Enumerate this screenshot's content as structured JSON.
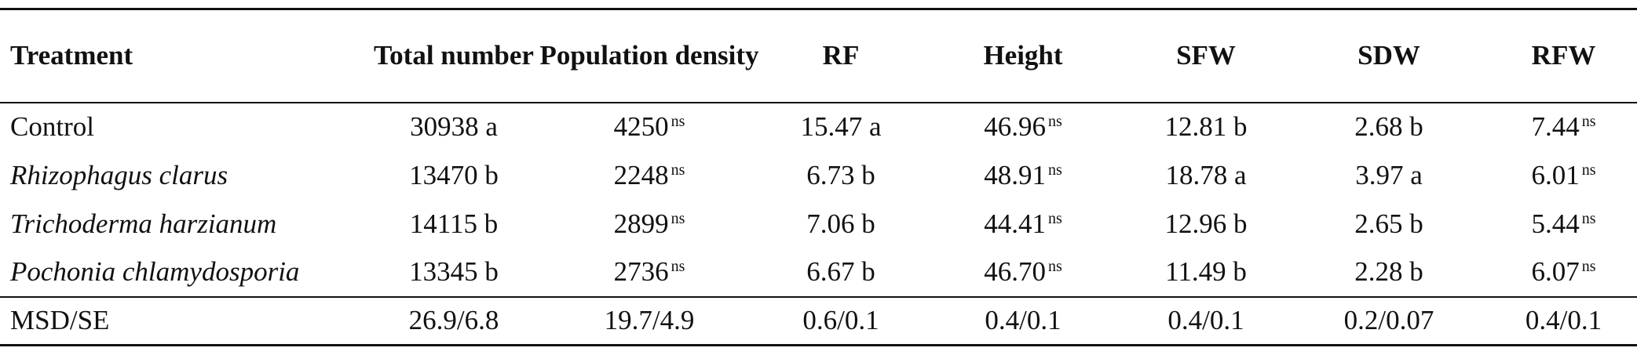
{
  "table": {
    "header": [
      "Treatment",
      "Total number",
      "Population density",
      "RF",
      "Height",
      "SFW",
      "SDW",
      "RFW"
    ],
    "rows": [
      [
        "Control",
        "30938 a",
        {
          "text": "4250",
          "sup": "ns"
        },
        "15.47 a",
        {
          "text": "46.96",
          "sup": "ns"
        },
        "12.81 b",
        "2.68 b",
        {
          "text": "7.44",
          "sup": "ns"
        }
      ],
      [
        "Rhizophagus clarus",
        "13470 b",
        {
          "text": "2248",
          "sup": "ns"
        },
        "6.73 b",
        {
          "text": "48.91",
          "sup": "ns"
        },
        "18.78 a",
        "3.97 a",
        {
          "text": "6.01",
          "sup": "ns"
        }
      ],
      [
        "Trichoderma harzianum",
        "14115 b",
        {
          "text": "2899",
          "sup": "ns"
        },
        "7.06 b",
        {
          "text": "44.41",
          "sup": "ns"
        },
        "12.96 b",
        "2.65 b",
        {
          "text": "5.44",
          "sup": "ns"
        }
      ],
      [
        "Pochonia chlamydosporia",
        "13345 b",
        {
          "text": "2736",
          "sup": "ns"
        },
        "6.67 b",
        {
          "text": "46.70",
          "sup": "ns"
        },
        "11.49 b",
        "2.28 b",
        {
          "text": "6.07",
          "sup": "ns"
        }
      ]
    ],
    "footer": [
      "MSD/SE",
      "26.9/6.8",
      "19.7/4.9",
      "0.6/0.1",
      "0.4/0.1",
      "0.4/0.1",
      "0.2/0.07",
      "0.4/0.1"
    ]
  }
}
